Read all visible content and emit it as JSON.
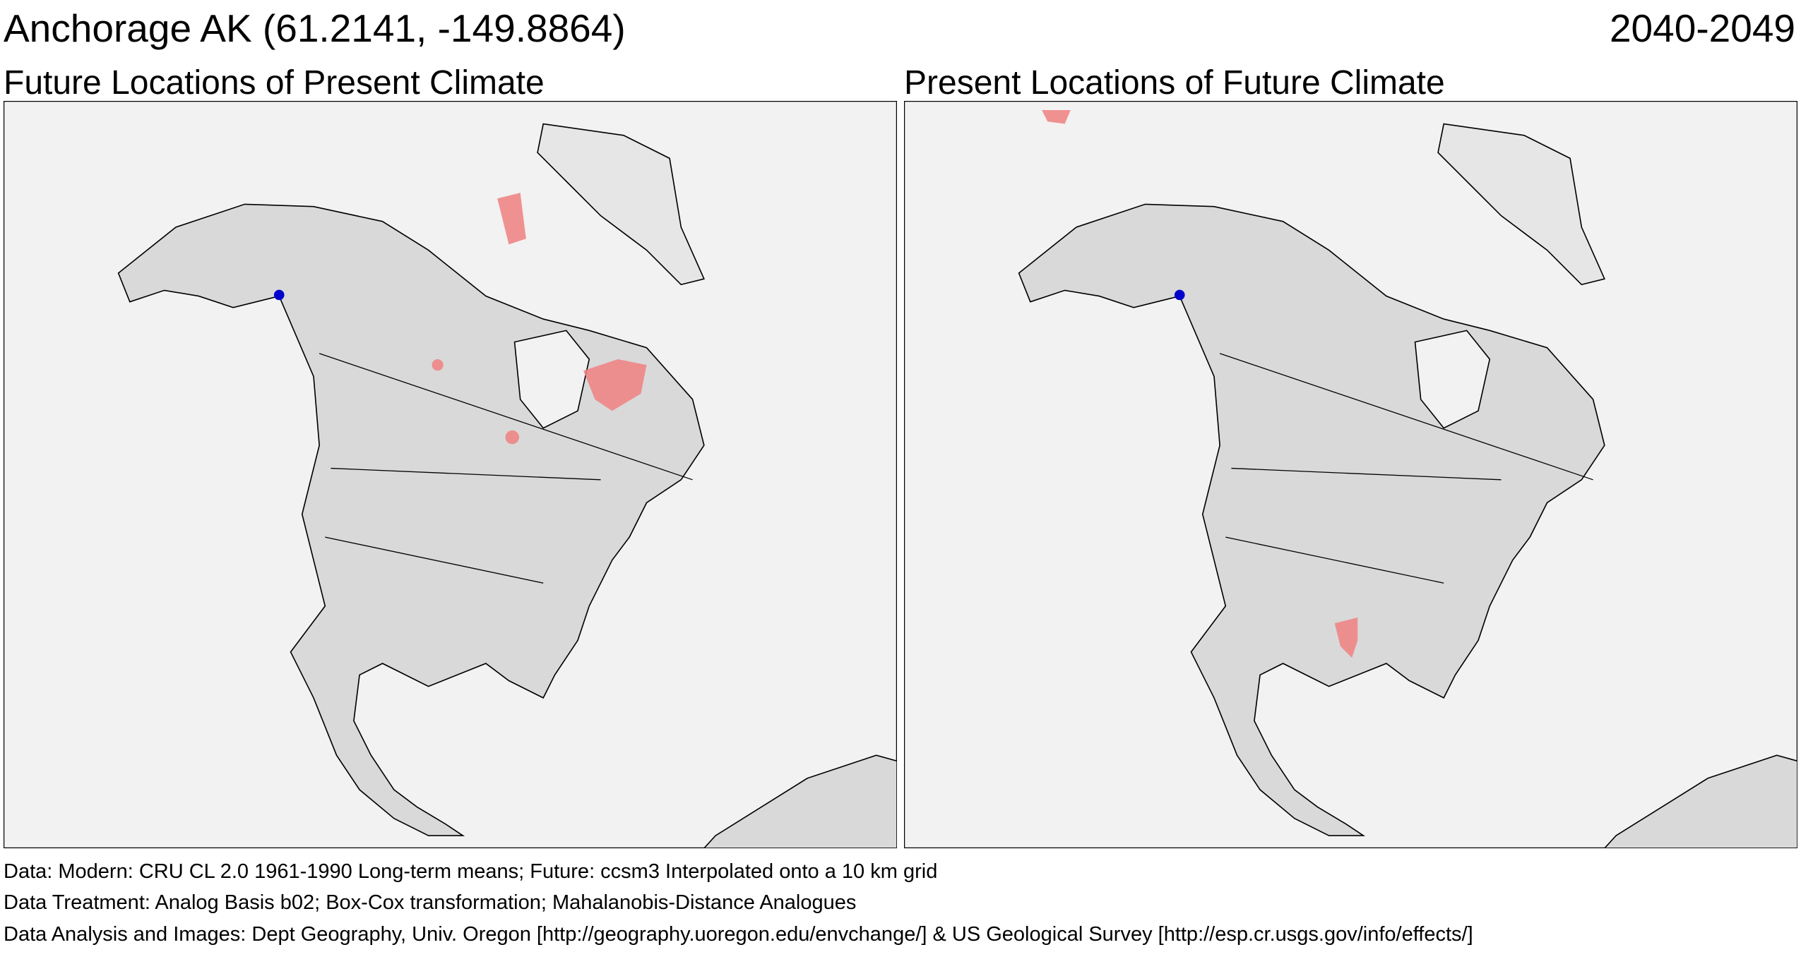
{
  "header": {
    "title": "Anchorage AK  (61.2141, -149.8864)",
    "period": "2040-2049"
  },
  "panels": [
    {
      "title": "Future Locations of Present Climate"
    },
    {
      "title": "Present Locations of Future Climate"
    }
  ],
  "footer": [
    "Data:  Modern: CRU CL 2.0 1961-1990 Long-term means; Future: ccsm3 Interpolated onto a 10 km grid",
    "Data Treatment:  Analog Basis b02; Box-Cox transformation; Mahalanobis-Distance Analogues",
    "Data Analysis and Images:  Dept Geography, Univ. Oregon [http://geography.uoregon.edu/envchange/] & US Geological Survey [http://esp.cr.usgs.gov/info/effects/]"
  ]
}
